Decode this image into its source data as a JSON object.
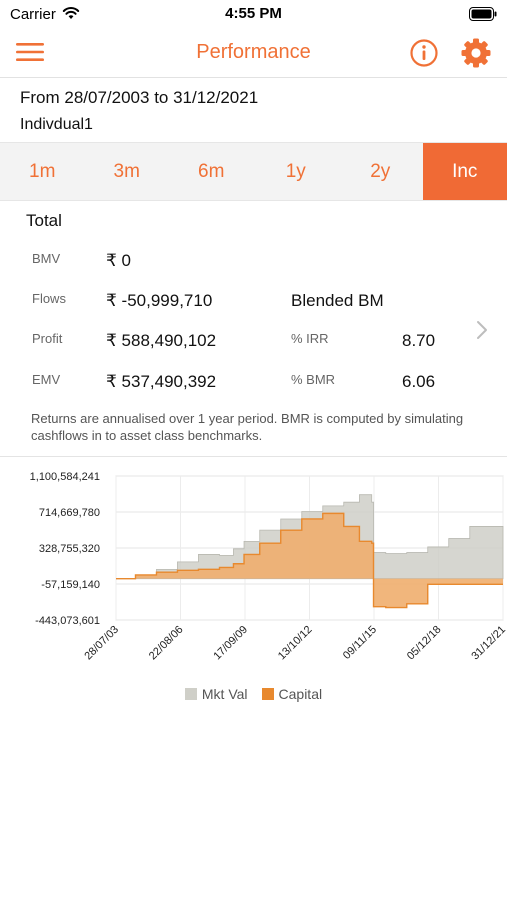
{
  "status_bar": {
    "carrier": "Carrier",
    "time": "4:55 PM"
  },
  "nav": {
    "title": "Performance"
  },
  "header": {
    "date_range": "From 28/07/2003 to 31/12/2021",
    "portfolio": "Indivdual1"
  },
  "tabs": [
    {
      "label": "1m",
      "active": false
    },
    {
      "label": "3m",
      "active": false
    },
    {
      "label": "6m",
      "active": false
    },
    {
      "label": "1y",
      "active": false
    },
    {
      "label": "2y",
      "active": false
    },
    {
      "label": "Inc",
      "active": true
    }
  ],
  "summary": {
    "title": "Total",
    "bmv_label": "BMV",
    "bmv_value": "₹ 0",
    "flows_label": "Flows",
    "flows_value": "₹ -50,999,710",
    "blended_bm": "Blended BM",
    "profit_label": "Profit",
    "profit_value": "₹ 588,490,102",
    "irr_label": "% IRR",
    "irr_value": "8.70",
    "emv_label": "EMV",
    "emv_value": "₹ 537,490,392",
    "bmr_label": "% BMR",
    "bmr_value": "6.06",
    "note": "Returns are annualised over 1 year period. BMR is computed by simulating cashflows in to asset class benchmarks."
  },
  "colors": {
    "accent": "#f07136",
    "mkt_val": "#cfcfc8",
    "capital": "#f0ae6e",
    "capital_line": "#e8892e"
  },
  "chart_data": {
    "type": "area",
    "y_tick_labels": [
      "1,100,584,241",
      "714,669,780",
      "328,755,320",
      "-57,159,140",
      "-443,073,601"
    ],
    "ylim": [
      -443073601,
      1100584241
    ],
    "x_tick_labels": [
      "28/07/03",
      "22/08/06",
      "17/09/09",
      "13/10/12",
      "09/11/15",
      "05/12/18",
      "31/12/21"
    ],
    "xlim": [
      "2003-07-28",
      "2021-12-31"
    ],
    "grid": true,
    "legend": "bottom",
    "series": [
      {
        "name": "Mkt Val",
        "x": [
          "2003-07-28",
          "2004-07-01",
          "2005-07-01",
          "2006-07-01",
          "2007-07-01",
          "2008-07-01",
          "2009-03-01",
          "2009-09-01",
          "2010-06-01",
          "2011-06-01",
          "2012-06-01",
          "2013-06-01",
          "2014-06-01",
          "2015-03-01",
          "2015-10-01",
          "2015-11-01",
          "2016-06-01",
          "2017-06-01",
          "2018-06-01",
          "2019-06-01",
          "2020-06-01",
          "2021-12-31"
        ],
        "y": [
          0,
          40000000,
          100000000,
          180000000,
          260000000,
          250000000,
          320000000,
          400000000,
          520000000,
          640000000,
          720000000,
          780000000,
          820000000,
          900000000,
          820000000,
          280000000,
          270000000,
          280000000,
          340000000,
          430000000,
          560000000,
          560000000
        ]
      },
      {
        "name": "Capital",
        "x": [
          "2003-07-28",
          "2004-07-01",
          "2005-07-01",
          "2006-07-01",
          "2007-07-01",
          "2008-07-01",
          "2009-03-01",
          "2009-09-01",
          "2010-06-01",
          "2011-06-01",
          "2012-06-01",
          "2013-06-01",
          "2014-06-01",
          "2015-03-01",
          "2015-10-01",
          "2015-11-01",
          "2016-06-01",
          "2017-06-01",
          "2018-06-01",
          "2019-06-01",
          "2020-06-01",
          "2021-12-31"
        ],
        "y": [
          0,
          40000000,
          70000000,
          90000000,
          100000000,
          120000000,
          160000000,
          260000000,
          380000000,
          520000000,
          640000000,
          700000000,
          560000000,
          400000000,
          380000000,
          -300000000,
          -310000000,
          -270000000,
          -60000000,
          -60000000,
          -60000000,
          -60000000
        ]
      }
    ]
  }
}
